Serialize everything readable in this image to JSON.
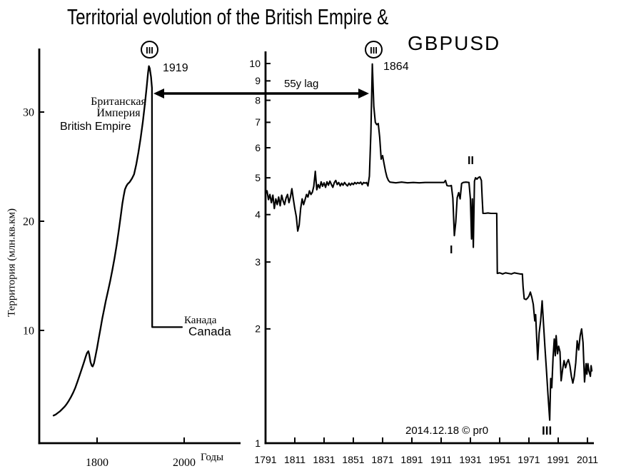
{
  "title": {
    "line1": "Territorial evolution of the British Empire &",
    "line2": "GBPUSD"
  },
  "annotations": {
    "left_peak_marker": "III",
    "left_peak_year": "1919",
    "right_peak_marker": "III",
    "right_peak_year": "1864",
    "lag_label": "55y lag",
    "crisis_1": "I",
    "crisis_2": "II",
    "crisis_3": "III",
    "copyright": "2014.12.18 © pr0"
  },
  "left_chart_labels": {
    "empire_ru": "Британская\nИмперия",
    "empire_en": "British Empire",
    "canada_ru": "Канада",
    "canada_en": "Canada",
    "x_axis_label": "Годы",
    "y_axis_label": "Территория (млн.кв.км)"
  },
  "colors": {
    "ink": "#000000",
    "background": "#ffffff"
  },
  "chart_data": [
    {
      "id": "empire-territory",
      "type": "line",
      "title": "Territorial evolution of the British Empire",
      "xlabel": "Годы",
      "ylabel": "Территория (млн.кв.км)",
      "scale": "linear",
      "grid": false,
      "x_ticks": [
        1800,
        2000
      ],
      "y_ticks": [
        10,
        20,
        30
      ],
      "xlim": [
        1667,
        2130
      ],
      "ylim": [
        0,
        35.8
      ],
      "annotations": {
        "peak_marker": "III",
        "peak_year": 1919,
        "peak_value": 34.2,
        "canada_level": 10.3
      },
      "series": [
        {
          "name": "British Empire territory (mln sq km)",
          "points": [
            [
              1700,
              2.2
            ],
            [
              1705,
              2.3
            ],
            [
              1710,
              2.45
            ],
            [
              1715,
              2.6
            ],
            [
              1720,
              2.8
            ],
            [
              1725,
              3.0
            ],
            [
              1730,
              3.25
            ],
            [
              1735,
              3.55
            ],
            [
              1740,
              3.9
            ],
            [
              1745,
              4.3
            ],
            [
              1750,
              4.75
            ],
            [
              1755,
              5.3
            ],
            [
              1760,
              5.9
            ],
            [
              1765,
              6.5
            ],
            [
              1770,
              7.1
            ],
            [
              1774,
              7.6
            ],
            [
              1777,
              7.95
            ],
            [
              1780,
              8.1
            ],
            [
              1782,
              7.8
            ],
            [
              1785,
              7.1
            ],
            [
              1788,
              6.75
            ],
            [
              1790,
              6.7
            ],
            [
              1793,
              7.0
            ],
            [
              1796,
              7.6
            ],
            [
              1800,
              8.4
            ],
            [
              1804,
              9.3
            ],
            [
              1808,
              10.2
            ],
            [
              1812,
              11.1
            ],
            [
              1816,
              11.9
            ],
            [
              1820,
              12.7
            ],
            [
              1825,
              13.6
            ],
            [
              1830,
              14.5
            ],
            [
              1835,
              15.5
            ],
            [
              1840,
              16.6
            ],
            [
              1845,
              17.8
            ],
            [
              1850,
              19.2
            ],
            [
              1855,
              20.7
            ],
            [
              1858,
              21.6
            ],
            [
              1861,
              22.3
            ],
            [
              1864,
              22.9
            ],
            [
              1867,
              23.2
            ],
            [
              1870,
              23.4
            ],
            [
              1875,
              23.6
            ],
            [
              1880,
              23.9
            ],
            [
              1885,
              24.3
            ],
            [
              1890,
              25.2
            ],
            [
              1895,
              26.3
            ],
            [
              1900,
              27.6
            ],
            [
              1905,
              29.1
            ],
            [
              1910,
              30.8
            ],
            [
              1914,
              32.3
            ],
            [
              1917,
              33.6
            ],
            [
              1919,
              34.2
            ],
            [
              1921,
              34.0
            ],
            [
              1924,
              33.2
            ],
            [
              1926,
              32.2
            ],
            [
              1926.5,
              10.3
            ],
            [
              1995,
              10.3
            ]
          ]
        }
      ]
    },
    {
      "id": "gbpusd",
      "type": "line",
      "title": "GBPUSD",
      "xlabel": "",
      "ylabel": "",
      "scale": "log",
      "grid": false,
      "x_ticks": [
        1791,
        1811,
        1831,
        1851,
        1871,
        1891,
        1911,
        1931,
        1951,
        1971,
        1991,
        2011
      ],
      "y_ticks": [
        1,
        2,
        3,
        4,
        5,
        6,
        7,
        8,
        9,
        10
      ],
      "xlim": [
        1791,
        2015
      ],
      "ylim": [
        1,
        10.7
      ],
      "annotations": {
        "peak_marker": "III",
        "peak_year": 1864,
        "peak_value": 9.97,
        "lag_label": "55y lag",
        "crisis_markers": [
          {
            "label": "I",
            "year": 1920,
            "value": 3.52
          },
          {
            "label": "II",
            "year": 1933,
            "value": 3.28
          },
          {
            "label": "III",
            "year": 1985,
            "value": 1.15
          }
        ]
      },
      "series": [
        {
          "name": "GBPUSD exchange rate",
          "points": [
            [
              1791,
              4.55
            ],
            [
              1792,
              4.62
            ],
            [
              1793,
              4.38
            ],
            [
              1794,
              4.52
            ],
            [
              1795,
              4.3
            ],
            [
              1796,
              4.5
            ],
            [
              1797,
              4.15
            ],
            [
              1798,
              4.4
            ],
            [
              1799,
              4.25
            ],
            [
              1800,
              4.45
            ],
            [
              1801,
              4.22
            ],
            [
              1802,
              4.5
            ],
            [
              1803,
              4.35
            ],
            [
              1804,
              4.25
            ],
            [
              1805,
              4.42
            ],
            [
              1806,
              4.52
            ],
            [
              1807,
              4.3
            ],
            [
              1808,
              4.45
            ],
            [
              1809,
              4.68
            ],
            [
              1810,
              4.4
            ],
            [
              1811,
              4.15
            ],
            [
              1812,
              3.95
            ],
            [
              1813,
              3.62
            ],
            [
              1814,
              3.75
            ],
            [
              1815,
              4.15
            ],
            [
              1816,
              4.4
            ],
            [
              1817,
              4.25
            ],
            [
              1818,
              4.38
            ],
            [
              1819,
              4.52
            ],
            [
              1820,
              4.45
            ],
            [
              1821,
              4.62
            ],
            [
              1822,
              4.52
            ],
            [
              1823,
              4.58
            ],
            [
              1824,
              4.75
            ],
            [
              1825,
              5.2
            ],
            [
              1826,
              4.65
            ],
            [
              1827,
              4.8
            ],
            [
              1828,
              4.7
            ],
            [
              1829,
              4.88
            ],
            [
              1830,
              4.75
            ],
            [
              1831,
              4.85
            ],
            [
              1832,
              4.72
            ],
            [
              1833,
              4.88
            ],
            [
              1834,
              4.78
            ],
            [
              1835,
              4.9
            ],
            [
              1836,
              4.8
            ],
            [
              1837,
              4.72
            ],
            [
              1838,
              4.86
            ],
            [
              1839,
              4.92
            ],
            [
              1840,
              4.8
            ],
            [
              1841,
              4.86
            ],
            [
              1842,
              4.76
            ],
            [
              1843,
              4.84
            ],
            [
              1844,
              4.78
            ],
            [
              1845,
              4.86
            ],
            [
              1846,
              4.8
            ],
            [
              1847,
              4.76
            ],
            [
              1848,
              4.84
            ],
            [
              1849,
              4.78
            ],
            [
              1850,
              4.84
            ],
            [
              1851,
              4.8
            ],
            [
              1852,
              4.86
            ],
            [
              1853,
              4.82
            ],
            [
              1854,
              4.86
            ],
            [
              1855,
              4.83
            ],
            [
              1856,
              4.87
            ],
            [
              1857,
              4.8
            ],
            [
              1858,
              4.86
            ],
            [
              1859,
              4.84
            ],
            [
              1860,
              4.86
            ],
            [
              1861,
              4.76
            ],
            [
              1862,
              5.05
            ],
            [
              1863,
              6.6
            ],
            [
              1864,
              9.97
            ],
            [
              1865,
              7.7
            ],
            [
              1866,
              7.0
            ],
            [
              1867,
              6.9
            ],
            [
              1868,
              6.95
            ],
            [
              1869,
              6.4
            ],
            [
              1870,
              5.6
            ],
            [
              1871,
              5.72
            ],
            [
              1872,
              5.45
            ],
            [
              1873,
              5.2
            ],
            [
              1874,
              5.02
            ],
            [
              1875,
              4.92
            ],
            [
              1876,
              4.87
            ],
            [
              1880,
              4.85
            ],
            [
              1884,
              4.87
            ],
            [
              1888,
              4.85
            ],
            [
              1892,
              4.86
            ],
            [
              1896,
              4.85
            ],
            [
              1900,
              4.86
            ],
            [
              1904,
              4.86
            ],
            [
              1908,
              4.86
            ],
            [
              1912,
              4.86
            ],
            [
              1913,
              4.86
            ],
            [
              1914,
              4.92
            ],
            [
              1915,
              4.77
            ],
            [
              1916,
              4.76
            ],
            [
              1917,
              4.76
            ],
            [
              1918,
              4.77
            ],
            [
              1919,
              4.42
            ],
            [
              1920,
              3.52
            ],
            [
              1921,
              3.82
            ],
            [
              1922,
              4.43
            ],
            [
              1923,
              4.57
            ],
            [
              1924,
              4.4
            ],
            [
              1925,
              4.83
            ],
            [
              1926,
              4.86
            ],
            [
              1928,
              4.87
            ],
            [
              1930,
              4.86
            ],
            [
              1931,
              4.4
            ],
            [
              1931.8,
              3.45
            ],
            [
              1932.3,
              4.4
            ],
            [
              1933,
              3.28
            ],
            [
              1933.8,
              4.9
            ],
            [
              1934.5,
              5.0
            ],
            [
              1935.5,
              4.96
            ],
            [
              1936.5,
              5.01
            ],
            [
              1937.5,
              5.03
            ],
            [
              1938.5,
              4.92
            ],
            [
              1939,
              4.46
            ],
            [
              1939.6,
              4.03
            ],
            [
              1941,
              4.03
            ],
            [
              1943,
              4.04
            ],
            [
              1945,
              4.03
            ],
            [
              1947,
              4.03
            ],
            [
              1949,
              4.03
            ],
            [
              1949.4,
              2.8
            ],
            [
              1951,
              2.81
            ],
            [
              1953,
              2.79
            ],
            [
              1955,
              2.81
            ],
            [
              1957,
              2.8
            ],
            [
              1959,
              2.79
            ],
            [
              1961,
              2.81
            ],
            [
              1963,
              2.8
            ],
            [
              1965,
              2.79
            ],
            [
              1966.5,
              2.79
            ],
            [
              1967,
              2.58
            ],
            [
              1967.8,
              2.4
            ],
            [
              1969,
              2.39
            ],
            [
              1970,
              2.41
            ],
            [
              1971,
              2.44
            ],
            [
              1972,
              2.5
            ],
            [
              1973,
              2.42
            ],
            [
              1974,
              2.32
            ],
            [
              1975,
              2.1
            ],
            [
              1975.6,
              2.18
            ],
            [
              1976.4,
              1.85
            ],
            [
              1977,
              1.66
            ],
            [
              1978,
              1.95
            ],
            [
              1979,
              2.1
            ],
            [
              1980,
              2.37
            ],
            [
              1981,
              2.05
            ],
            [
              1982,
              1.78
            ],
            [
              1983,
              1.55
            ],
            [
              1984,
              1.35
            ],
            [
              1985.2,
              1.15
            ],
            [
              1985.9,
              1.48
            ],
            [
              1986.6,
              1.4
            ],
            [
              1987.5,
              1.68
            ],
            [
              1988.3,
              1.88
            ],
            [
              1989,
              1.7
            ],
            [
              1989.6,
              1.92
            ],
            [
              1990.5,
              1.72
            ],
            [
              1991.3,
              1.8
            ],
            [
              1992.2,
              1.74
            ],
            [
              1993,
              1.46
            ],
            [
              1994,
              1.56
            ],
            [
              1995,
              1.65
            ],
            [
              1996,
              1.58
            ],
            [
              1997,
              1.63
            ],
            [
              1998,
              1.66
            ],
            [
              1999,
              1.6
            ],
            [
              2000,
              1.5
            ],
            [
              2001,
              1.44
            ],
            [
              2002,
              1.5
            ],
            [
              2003,
              1.63
            ],
            [
              2004,
              1.86
            ],
            [
              2005,
              1.76
            ],
            [
              2006,
              1.92
            ],
            [
              2007,
              2.0
            ],
            [
              2008,
              1.84
            ],
            [
              2009,
              1.45
            ],
            [
              2010,
              1.62
            ],
            [
              2010.6,
              1.52
            ],
            [
              2011.3,
              1.62
            ],
            [
              2012,
              1.55
            ],
            [
              2013,
              1.5
            ],
            [
              2013.5,
              1.6
            ],
            [
              2014,
              1.55
            ]
          ]
        }
      ]
    }
  ]
}
